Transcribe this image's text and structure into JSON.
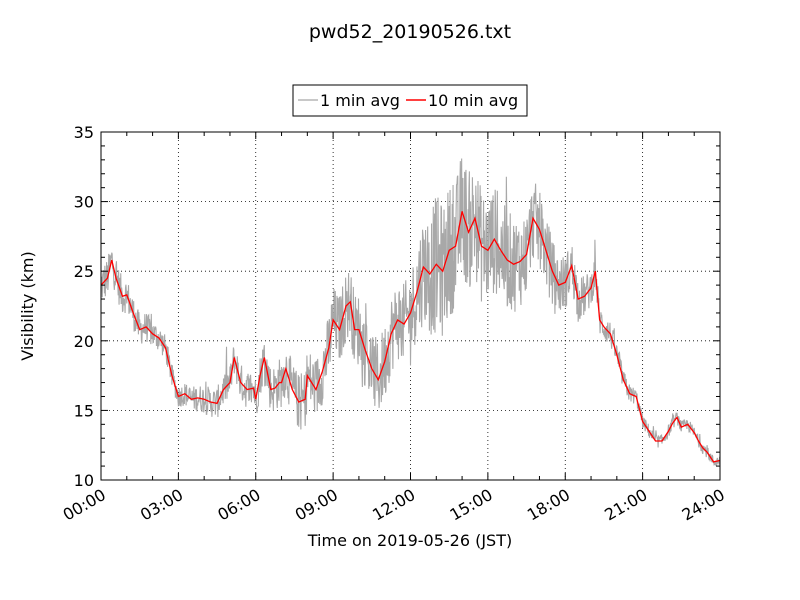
{
  "chart_data": {
    "type": "line",
    "title": "pwd52_20190526.txt",
    "xlabel": "Time on 2019-05-26 (JST)",
    "ylabel": "Visibility (km)",
    "xlim": [
      "00:00",
      "24:00"
    ],
    "ylim": [
      10,
      35
    ],
    "x_ticks": [
      "00:00",
      "03:00",
      "06:00",
      "09:00",
      "12:00",
      "15:00",
      "18:00",
      "21:00",
      "24:00"
    ],
    "y_ticks": [
      "10",
      "15",
      "20",
      "25",
      "30",
      "35"
    ],
    "grid": true,
    "legend_position": "top-center",
    "series": [
      {
        "name": "1 min avg",
        "color": "#a8a8a8",
        "noise": [
          {
            "t": 0,
            "a": 1.5
          },
          {
            "t": 3,
            "a": 0.8
          },
          {
            "t": 6,
            "a": 1.5
          },
          {
            "t": 9,
            "a": 2.5
          },
          {
            "t": 12,
            "a": 3.0
          },
          {
            "t": 13,
            "a": 5.0
          },
          {
            "t": 16,
            "a": 3.5
          },
          {
            "t": 18,
            "a": 2.0
          },
          {
            "t": 19.5,
            "a": 1.0
          },
          {
            "t": 21,
            "a": 0.5
          },
          {
            "t": 24,
            "a": 0.4
          }
        ]
      },
      {
        "name": "10 min avg",
        "color": "#ff0000",
        "points": [
          [
            "00:00",
            24.0
          ],
          [
            "00:15",
            24.5
          ],
          [
            "00:25",
            25.8
          ],
          [
            "00:35",
            24.5
          ],
          [
            "00:50",
            23.2
          ],
          [
            "01:00",
            23.3
          ],
          [
            "01:15",
            22.0
          ],
          [
            "01:30",
            20.8
          ],
          [
            "01:45",
            21.0
          ],
          [
            "02:00",
            20.5
          ],
          [
            "02:15",
            20.2
          ],
          [
            "02:30",
            19.5
          ],
          [
            "02:45",
            17.5
          ],
          [
            "03:00",
            16.0
          ],
          [
            "03:15",
            16.2
          ],
          [
            "03:30",
            15.8
          ],
          [
            "03:45",
            15.9
          ],
          [
            "04:00",
            15.8
          ],
          [
            "04:15",
            15.6
          ],
          [
            "04:30",
            15.5
          ],
          [
            "04:45",
            16.5
          ],
          [
            "05:00",
            17.0
          ],
          [
            "05:10",
            18.8
          ],
          [
            "05:25",
            17.0
          ],
          [
            "05:40",
            16.5
          ],
          [
            "05:55",
            16.6
          ],
          [
            "06:00",
            15.8
          ],
          [
            "06:10",
            17.5
          ],
          [
            "06:20",
            18.8
          ],
          [
            "06:35",
            16.5
          ],
          [
            "06:45",
            16.6
          ],
          [
            "06:55",
            17.0
          ],
          [
            "07:00",
            17.0
          ],
          [
            "07:10",
            18.0
          ],
          [
            "07:25",
            16.5
          ],
          [
            "07:40",
            15.6
          ],
          [
            "07:55",
            15.8
          ],
          [
            "08:00",
            17.5
          ],
          [
            "08:20",
            16.5
          ],
          [
            "08:35",
            17.8
          ],
          [
            "08:50",
            19.5
          ],
          [
            "09:00",
            21.5
          ],
          [
            "09:15",
            20.8
          ],
          [
            "09:30",
            22.5
          ],
          [
            "09:40",
            22.8
          ],
          [
            "09:50",
            20.8
          ],
          [
            "10:00",
            20.8
          ],
          [
            "10:15",
            19.3
          ],
          [
            "10:30",
            18.0
          ],
          [
            "10:45",
            17.2
          ],
          [
            "11:00",
            18.5
          ],
          [
            "11:15",
            20.5
          ],
          [
            "11:30",
            21.5
          ],
          [
            "11:45",
            21.2
          ],
          [
            "12:00",
            22.0
          ],
          [
            "12:15",
            23.5
          ],
          [
            "12:30",
            25.3
          ],
          [
            "12:45",
            24.8
          ],
          [
            "13:00",
            25.5
          ],
          [
            "13:15",
            25.0
          ],
          [
            "13:30",
            26.5
          ],
          [
            "13:45",
            26.8
          ],
          [
            "14:00",
            29.3
          ],
          [
            "14:15",
            27.8
          ],
          [
            "14:30",
            28.8
          ],
          [
            "14:45",
            26.8
          ],
          [
            "15:00",
            26.5
          ],
          [
            "15:15",
            27.3
          ],
          [
            "15:30",
            26.5
          ],
          [
            "15:45",
            25.8
          ],
          [
            "16:00",
            25.5
          ],
          [
            "16:15",
            25.7
          ],
          [
            "16:30",
            26.2
          ],
          [
            "16:45",
            28.8
          ],
          [
            "17:00",
            28.0
          ],
          [
            "17:15",
            26.5
          ],
          [
            "17:30",
            25.0
          ],
          [
            "17:45",
            24.0
          ],
          [
            "18:00",
            24.2
          ],
          [
            "18:15",
            25.4
          ],
          [
            "18:30",
            23.0
          ],
          [
            "18:45",
            23.2
          ],
          [
            "19:00",
            23.8
          ],
          [
            "19:10",
            25.0
          ],
          [
            "19:20",
            21.5
          ],
          [
            "19:30",
            21.0
          ],
          [
            "19:45",
            20.5
          ],
          [
            "20:00",
            19.0
          ],
          [
            "20:15",
            17.2
          ],
          [
            "20:30",
            16.2
          ],
          [
            "20:45",
            16.0
          ],
          [
            "21:00",
            14.2
          ],
          [
            "21:15",
            13.5
          ],
          [
            "21:30",
            12.8
          ],
          [
            "21:45",
            12.8
          ],
          [
            "22:00",
            13.5
          ],
          [
            "22:10",
            14.1
          ],
          [
            "22:20",
            14.5
          ],
          [
            "22:30",
            13.8
          ],
          [
            "22:45",
            14.0
          ],
          [
            "23:00",
            13.4
          ],
          [
            "23:10",
            12.8
          ],
          [
            "23:20",
            12.3
          ],
          [
            "23:30",
            12.0
          ],
          [
            "23:45",
            11.3
          ],
          [
            "24:00",
            11.4
          ]
        ]
      }
    ]
  }
}
